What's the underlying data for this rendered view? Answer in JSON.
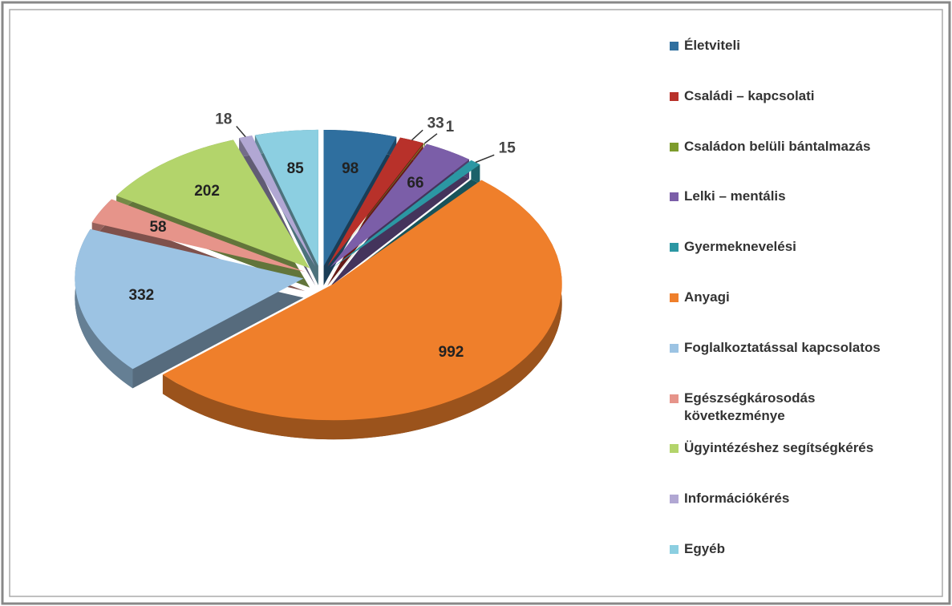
{
  "chart_data": {
    "type": "pie",
    "categories": [
      "Életviteli",
      "Családi – kapcsolati",
      "Családon belüli bántalmazás",
      "Lelki – mentális",
      "Gyermeknevelési",
      "Anyagi",
      "Foglalkoztatással kapcsolatos",
      "Egészségkárosodás következménye",
      "Ügyintézéshez segítségkérés",
      "Információkérés",
      "Egyéb"
    ],
    "values": [
      98,
      33,
      1,
      66,
      15,
      992,
      332,
      58,
      202,
      18,
      85
    ],
    "colors": [
      "#2f6f9f",
      "#b8312a",
      "#7d9c2c",
      "#7b5ea8",
      "#2b97a3",
      "#ef7f2b",
      "#9cc3e3",
      "#e6948a",
      "#b3d46b",
      "#b1a7d3",
      "#8ccfe1"
    ],
    "legend": "right"
  }
}
